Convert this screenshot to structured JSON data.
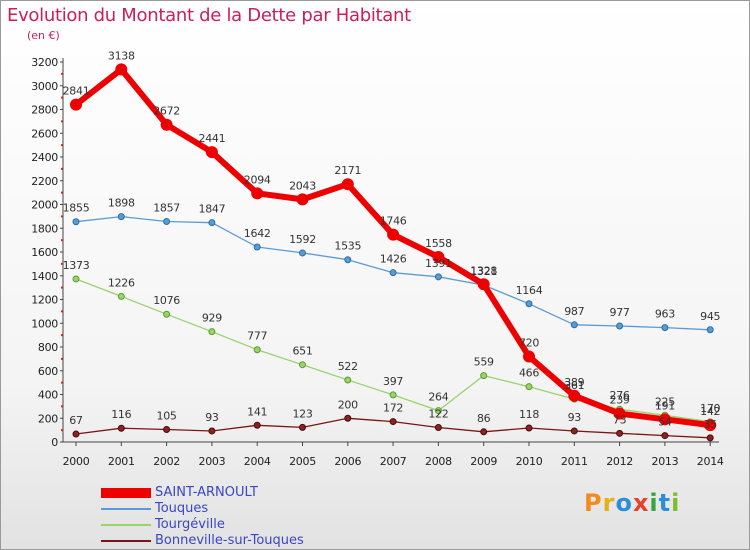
{
  "title": "Evolution du Montant de la Dette par Habitant",
  "unit_label": "(en €)",
  "logo": {
    "letters": [
      "P",
      "r",
      "o",
      "x",
      "i",
      "t",
      "i"
    ],
    "colors": [
      "#f28c1e",
      "#e8b018",
      "#2c8ed8",
      "#e8402a",
      "#3aa53c",
      "#2c8ed8",
      "#7bbf2a"
    ]
  },
  "chart_data": {
    "type": "line",
    "x": [
      "2000",
      "2001",
      "2002",
      "2003",
      "2004",
      "2005",
      "2006",
      "2007",
      "2008",
      "2009",
      "2010",
      "2011",
      "2012",
      "2013",
      "2014"
    ],
    "ylim": [
      0,
      3200
    ],
    "yticks": [
      0,
      200,
      400,
      600,
      800,
      1000,
      1200,
      1400,
      1600,
      1800,
      2000,
      2200,
      2400,
      2600,
      2800,
      3000,
      3200
    ],
    "grid": false,
    "legend_position": "bottom-left",
    "series": [
      {
        "name": "SAINT-ARNOULT",
        "color": "#ee0000",
        "values": [
          2841,
          3138,
          2672,
          2441,
          2094,
          2043,
          2171,
          1746,
          1558,
          1328,
          720,
          389,
          239,
          191,
          142
        ]
      },
      {
        "name": "Touques",
        "color": "#5b9bd5",
        "values": [
          1855,
          1898,
          1857,
          1847,
          1642,
          1592,
          1535,
          1426,
          1391,
          1321,
          1164,
          987,
          977,
          963,
          945
        ]
      },
      {
        "name": "Tourgéville",
        "color": "#99d36b",
        "values": [
          1373,
          1226,
          1076,
          929,
          777,
          651,
          522,
          397,
          264,
          559,
          466,
          361,
          276,
          225,
          170
        ]
      },
      {
        "name": "Bonneville-sur-Touques",
        "color": "#7a1515",
        "values": [
          67,
          116,
          105,
          93,
          141,
          123,
          200,
          172,
          122,
          86,
          118,
          93,
          73,
          54,
          35
        ]
      }
    ]
  }
}
